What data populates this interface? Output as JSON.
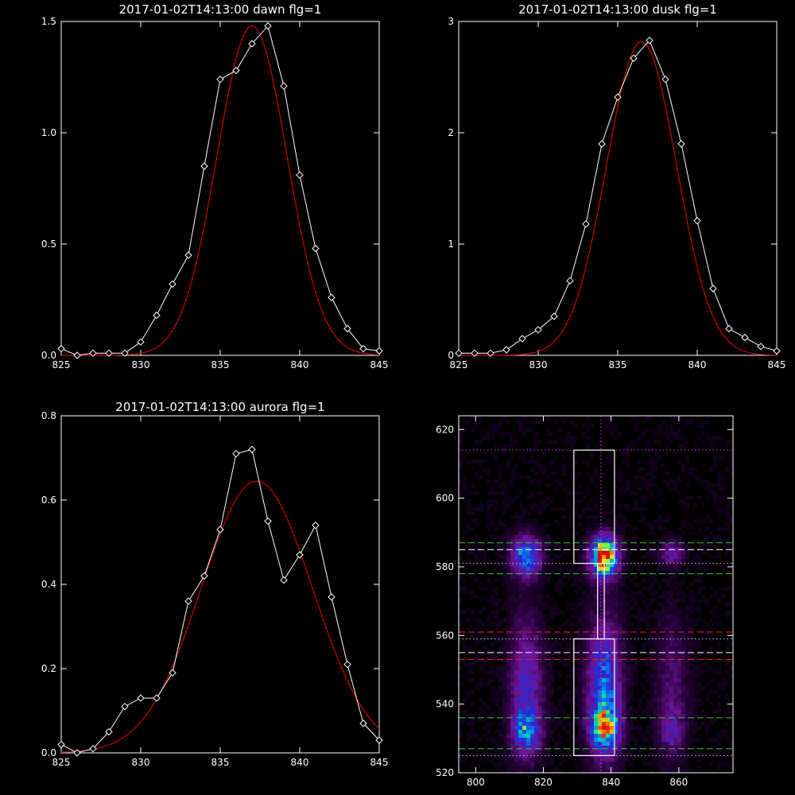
{
  "chart_data": [
    {
      "type": "line",
      "title": "2017-01-02T14:13:00 dawn flg=1",
      "xlim": [
        825,
        845
      ],
      "ylim": [
        0,
        1.5
      ],
      "xticks": [
        "825",
        "830",
        "835",
        "840",
        "845"
      ],
      "yticks": [
        "0.0",
        "0.5",
        "1.0",
        "1.5"
      ],
      "series": [
        {
          "color": "#ffffff",
          "marker": "diamond",
          "x": [
            825,
            826,
            827,
            828,
            829,
            830,
            831,
            832,
            833,
            834,
            835,
            836,
            837,
            838,
            839,
            840,
            841,
            842,
            843,
            844,
            845
          ],
          "y": [
            0.03,
            0.0,
            0.01,
            0.01,
            0.01,
            0.06,
            0.18,
            0.32,
            0.45,
            0.85,
            1.24,
            1.28,
            1.4,
            1.48,
            1.21,
            0.81,
            0.48,
            0.26,
            0.12,
            0.03,
            0.02
          ]
        },
        {
          "color": "#cc0000",
          "fit": "gaussian",
          "amplitude": 1.48,
          "center": 837.0,
          "sigma": 2.2,
          "baseline": 0.0
        }
      ]
    },
    {
      "type": "line",
      "title": "2017-01-02T14:13:00 dusk flg=1",
      "xlim": [
        825,
        845
      ],
      "ylim": [
        0,
        3
      ],
      "xticks": [
        "825",
        "830",
        "835",
        "840",
        "845"
      ],
      "yticks": [
        "0",
        "1",
        "2",
        "3"
      ],
      "series": [
        {
          "color": "#ffffff",
          "marker": "diamond",
          "x": [
            825,
            826,
            827,
            828,
            829,
            830,
            831,
            832,
            833,
            834,
            835,
            836,
            837,
            838,
            839,
            840,
            841,
            842,
            843,
            844,
            845
          ],
          "y": [
            0.02,
            0.02,
            0.02,
            0.05,
            0.15,
            0.23,
            0.35,
            0.67,
            1.18,
            1.9,
            2.32,
            2.67,
            2.83,
            2.48,
            1.9,
            1.21,
            0.6,
            0.24,
            0.16,
            0.08,
            0.04
          ]
        },
        {
          "color": "#cc0000",
          "fit": "gaussian",
          "amplitude": 2.82,
          "center": 836.5,
          "sigma": 2.2,
          "baseline": 0.0
        }
      ]
    },
    {
      "type": "line",
      "title": "2017-01-02T14:13:00 aurora flg=1",
      "xlim": [
        825,
        845
      ],
      "ylim": [
        0,
        0.8
      ],
      "xticks": [
        "825",
        "830",
        "835",
        "840",
        "845"
      ],
      "yticks": [
        "0.0",
        "0.2",
        "0.4",
        "0.6",
        "0.8"
      ],
      "series": [
        {
          "color": "#ffffff",
          "marker": "diamond",
          "x": [
            825,
            826,
            827,
            828,
            829,
            830,
            831,
            832,
            833,
            834,
            835,
            836,
            837,
            838,
            839,
            840,
            841,
            842,
            843,
            844,
            845
          ],
          "y": [
            0.02,
            0.0,
            0.01,
            0.05,
            0.11,
            0.13,
            0.13,
            0.19,
            0.36,
            0.42,
            0.53,
            0.71,
            0.72,
            0.55,
            0.41,
            0.47,
            0.54,
            0.37,
            0.21,
            0.07,
            0.03
          ]
        },
        {
          "color": "#cc0000",
          "fit": "gaussian",
          "amplitude": 0.645,
          "center": 837.3,
          "sigma": 3.5,
          "baseline": 0.0
        }
      ]
    },
    {
      "type": "heatmap",
      "title": "",
      "xlim": [
        795,
        876
      ],
      "ylim": [
        520,
        624
      ],
      "xticks": [
        "800",
        "820",
        "840",
        "860"
      ],
      "yticks": [
        "520",
        "540",
        "560",
        "580",
        "600",
        "620"
      ],
      "blobs": [
        {
          "x": 815,
          "y": 583,
          "sx": 3.0,
          "sy": 4.0,
          "amp": 0.6
        },
        {
          "x": 838,
          "y": 583,
          "sx": 2.8,
          "sy": 4.0,
          "amp": 1.0
        },
        {
          "x": 858,
          "y": 584,
          "sx": 2.5,
          "sy": 2.5,
          "amp": 0.3
        },
        {
          "x": 815,
          "y": 545,
          "sx": 3.5,
          "sy": 14.0,
          "amp": 0.35
        },
        {
          "x": 838,
          "y": 545,
          "sx": 3.5,
          "sy": 14.0,
          "amp": 0.5
        },
        {
          "x": 858,
          "y": 545,
          "sx": 3.5,
          "sy": 14.0,
          "amp": 0.18
        },
        {
          "x": 815,
          "y": 532,
          "sx": 2.8,
          "sy": 4.0,
          "amp": 0.4
        },
        {
          "x": 838,
          "y": 533,
          "sx": 2.8,
          "sy": 4.0,
          "amp": 0.62
        },
        {
          "x": 858,
          "y": 532,
          "sx": 2.5,
          "sy": 4.0,
          "amp": 0.2
        }
      ],
      "boxes": [
        {
          "x0": 829,
          "x1": 841,
          "y0": 581,
          "y1": 614,
          "color": "#ffffff"
        },
        {
          "x0": 829,
          "x1": 841,
          "y0": 525,
          "y1": 559,
          "color": "#ffffff"
        },
        {
          "x0": 836,
          "x1": 838,
          "y0": 559,
          "y1": 581,
          "color": "#ffffff"
        }
      ],
      "hlines": [
        {
          "y": 614,
          "color": "#cc44cc",
          "style": "dotted"
        },
        {
          "y": 587,
          "color": "#33cc33",
          "style": "dashed"
        },
        {
          "y": 585,
          "color": "#ffffff",
          "style": "dashed"
        },
        {
          "y": 581,
          "color": "#cccccc",
          "style": "dotted"
        },
        {
          "y": 578,
          "color": "#33cc33",
          "style": "dashed"
        },
        {
          "y": 561,
          "color": "#ee2222",
          "style": "dashed"
        },
        {
          "y": 559,
          "color": "#cccccc",
          "style": "dotted"
        },
        {
          "y": 555,
          "color": "#ffffff",
          "style": "dashed"
        },
        {
          "y": 553,
          "color": "#ee2222",
          "style": "dashed"
        },
        {
          "y": 536,
          "color": "#33cc33",
          "style": "dashed"
        },
        {
          "y": 527,
          "color": "#33cc33",
          "style": "dashed"
        },
        {
          "y": 525,
          "color": "#cccccc",
          "style": "dotted"
        }
      ],
      "vlines": [
        {
          "x": 837,
          "color": "#cc44cc",
          "style": "dotted"
        }
      ]
    }
  ]
}
